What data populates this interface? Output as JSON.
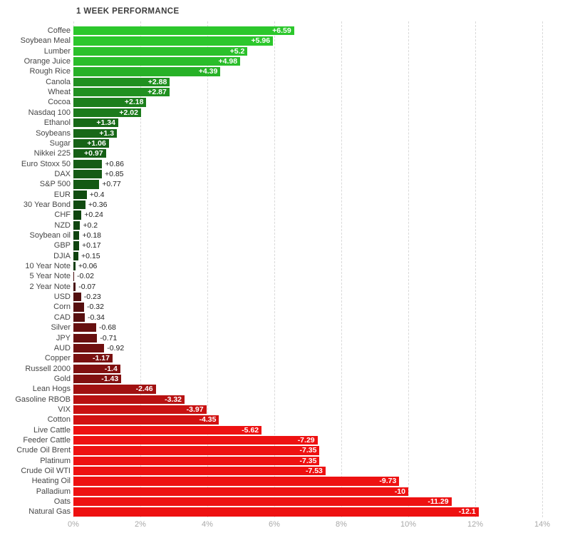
{
  "chart_data": {
    "type": "bar",
    "orientation": "horizontal",
    "title": "1 WEEK PERFORMANCE",
    "xlabel": "",
    "ylabel": "",
    "x_ticks": [
      "0%",
      "2%",
      "4%",
      "6%",
      "8%",
      "10%",
      "12%",
      "14%"
    ],
    "x_range_pct": [
      0,
      14
    ],
    "grid": "vertical-dashed",
    "legend": "none",
    "note": "Bar length equals absolute value of 1-week percent change; green bars are positive, red bars are negative; brightness scales with magnitude.",
    "items": [
      {
        "label": "Coffee",
        "value": 6.59,
        "display": "+6.59"
      },
      {
        "label": "Soybean Meal",
        "value": 5.96,
        "display": "+5.96"
      },
      {
        "label": "Lumber",
        "value": 5.2,
        "display": "+5.2"
      },
      {
        "label": "Orange Juice",
        "value": 4.98,
        "display": "+4.98"
      },
      {
        "label": "Rough Rice",
        "value": 4.39,
        "display": "+4.39"
      },
      {
        "label": "Canola",
        "value": 2.88,
        "display": "+2.88"
      },
      {
        "label": "Wheat",
        "value": 2.87,
        "display": "+2.87"
      },
      {
        "label": "Cocoa",
        "value": 2.18,
        "display": "+2.18"
      },
      {
        "label": "Nasdaq 100",
        "value": 2.02,
        "display": "+2.02"
      },
      {
        "label": "Ethanol",
        "value": 1.34,
        "display": "+1.34"
      },
      {
        "label": "Soybeans",
        "value": 1.3,
        "display": "+1.3"
      },
      {
        "label": "Sugar",
        "value": 1.06,
        "display": "+1.06"
      },
      {
        "label": "Nikkei 225",
        "value": 0.97,
        "display": "+0.97"
      },
      {
        "label": "Euro Stoxx 50",
        "value": 0.86,
        "display": "+0.86"
      },
      {
        "label": "DAX",
        "value": 0.85,
        "display": "+0.85"
      },
      {
        "label": "S&P 500",
        "value": 0.77,
        "display": "+0.77"
      },
      {
        "label": "EUR",
        "value": 0.4,
        "display": "+0.4"
      },
      {
        "label": "30 Year Bond",
        "value": 0.36,
        "display": "+0.36"
      },
      {
        "label": "CHF",
        "value": 0.24,
        "display": "+0.24"
      },
      {
        "label": "NZD",
        "value": 0.2,
        "display": "+0.2"
      },
      {
        "label": "Soybean oil",
        "value": 0.18,
        "display": "+0.18"
      },
      {
        "label": "GBP",
        "value": 0.17,
        "display": "+0.17"
      },
      {
        "label": "DJIA",
        "value": 0.15,
        "display": "+0.15"
      },
      {
        "label": "10 Year Note",
        "value": 0.06,
        "display": "+0.06"
      },
      {
        "label": "5 Year Note",
        "value": -0.02,
        "display": "-0.02"
      },
      {
        "label": "2 Year Note",
        "value": -0.07,
        "display": "-0.07"
      },
      {
        "label": "USD",
        "value": -0.23,
        "display": "-0.23"
      },
      {
        "label": "Corn",
        "value": -0.32,
        "display": "-0.32"
      },
      {
        "label": "CAD",
        "value": -0.34,
        "display": "-0.34"
      },
      {
        "label": "Silver",
        "value": -0.68,
        "display": "-0.68"
      },
      {
        "label": "JPY",
        "value": -0.71,
        "display": "-0.71"
      },
      {
        "label": "AUD",
        "value": -0.92,
        "display": "-0.92"
      },
      {
        "label": "Copper",
        "value": -1.17,
        "display": "-1.17"
      },
      {
        "label": "Russell 2000",
        "value": -1.4,
        "display": "-1.4"
      },
      {
        "label": "Gold",
        "value": -1.43,
        "display": "-1.43"
      },
      {
        "label": "Lean Hogs",
        "value": -2.46,
        "display": "-2.46"
      },
      {
        "label": "Gasoline RBOB",
        "value": -3.32,
        "display": "-3.32"
      },
      {
        "label": "VIX",
        "value": -3.97,
        "display": "-3.97"
      },
      {
        "label": "Cotton",
        "value": -4.35,
        "display": "-4.35"
      },
      {
        "label": "Live Cattle",
        "value": -5.62,
        "display": "-5.62"
      },
      {
        "label": "Feeder Cattle",
        "value": -7.29,
        "display": "-7.29"
      },
      {
        "label": "Crude Oil Brent",
        "value": -7.35,
        "display": "-7.35"
      },
      {
        "label": "Platinum",
        "value": -7.35,
        "display": "-7.35"
      },
      {
        "label": "Crude Oil WTI",
        "value": -7.53,
        "display": "-7.53"
      },
      {
        "label": "Heating Oil",
        "value": -9.73,
        "display": "-9.73"
      },
      {
        "label": "Palladium",
        "value": -10,
        "display": "-10"
      },
      {
        "label": "Oats",
        "value": -11.29,
        "display": "-11.29"
      },
      {
        "label": "Natural Gas",
        "value": -12.1,
        "display": "-12.1"
      }
    ],
    "style": {
      "background": "#ffffff",
      "positive_bright": "#2cc72c",
      "positive_dark": "#0d380d",
      "negative_bright": "#ee1111",
      "negative_dark": "#431010",
      "saturate_at_abs_pct": 5.5,
      "gridline_color": "#d9d9d9",
      "axis_label_color": "#a9a9a9",
      "row_label_color": "#464646",
      "value_inside_color": "#ffffff",
      "value_outside_color": "#222222"
    }
  }
}
